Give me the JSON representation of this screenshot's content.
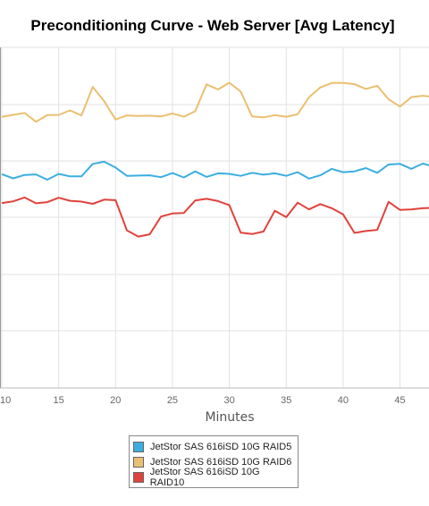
{
  "chart_data": {
    "type": "line",
    "title": "Preconditioning Curve - Web Server [Avg Latency]",
    "xlabel": "Minutes",
    "ylabel": "",
    "xlim": [
      10,
      48.5
    ],
    "x_ticks": [
      "10",
      "15",
      "20",
      "25",
      "30",
      "35",
      "40",
      "45"
    ],
    "grid": true,
    "legend_position": "bottom",
    "x": [
      10,
      11,
      12,
      13,
      14,
      15,
      16,
      17,
      18,
      19,
      20,
      21,
      22,
      23,
      24,
      25,
      26,
      27,
      28,
      29,
      30,
      31,
      32,
      33,
      34,
      35,
      36,
      37,
      38,
      39,
      40,
      41,
      42,
      43,
      44,
      45,
      46,
      47,
      48
    ],
    "series": [
      {
        "name": "JetStor SAS 616iSD 10G RAID5",
        "color": "#3aaee0",
        "values": [
          74.9,
          73.4,
          74.6,
          74.8,
          72.9,
          75.0,
          74.1,
          74.1,
          78.6,
          79.4,
          77.3,
          74.3,
          74.4,
          74.5,
          73.8,
          75.3,
          73.7,
          75.9,
          73.9,
          75.2,
          75.0,
          74.3,
          75.4,
          74.7,
          75.2,
          74.3,
          75.6,
          73.3,
          74.5,
          76.8,
          75.6,
          75.9,
          77.1,
          75.4,
          78.4,
          78.6,
          76.8,
          78.7,
          77.6
        ]
      },
      {
        "name": "JetStor SAS 616iSD 10G RAID6",
        "color": "#ebbf70",
        "values": [
          95.6,
          96.3,
          97.0,
          93.8,
          96.2,
          96.3,
          97.9,
          96.1,
          106.4,
          101.2,
          94.6,
          96.1,
          95.9,
          96.0,
          95.7,
          96.8,
          95.6,
          97.6,
          107.3,
          105.5,
          107.9,
          104.7,
          95.7,
          95.4,
          96.2,
          95.6,
          96.5,
          102.6,
          106.2,
          107.8,
          107.8,
          107.4,
          105.6,
          106.8,
          101.9,
          99.3,
          102.7,
          103.2,
          102.7
        ]
      },
      {
        "name": "JetStor SAS 616iSD 10G RAID10",
        "color": "#e0423c",
        "values": [
          64.5,
          65.1,
          66.5,
          64.4,
          64.8,
          66.4,
          65.3,
          65.0,
          64.2,
          65.7,
          65.5,
          54.6,
          52.4,
          53.2,
          59.6,
          60.7,
          60.9,
          65.4,
          66.0,
          65.2,
          63.7,
          53.8,
          53.3,
          54.2,
          61.7,
          59.4,
          64.6,
          62.2,
          64.1,
          62.6,
          60.4,
          53.7,
          54.4,
          54.8,
          64.9,
          62.0,
          62.2,
          62.6,
          62.8
        ]
      }
    ]
  }
}
